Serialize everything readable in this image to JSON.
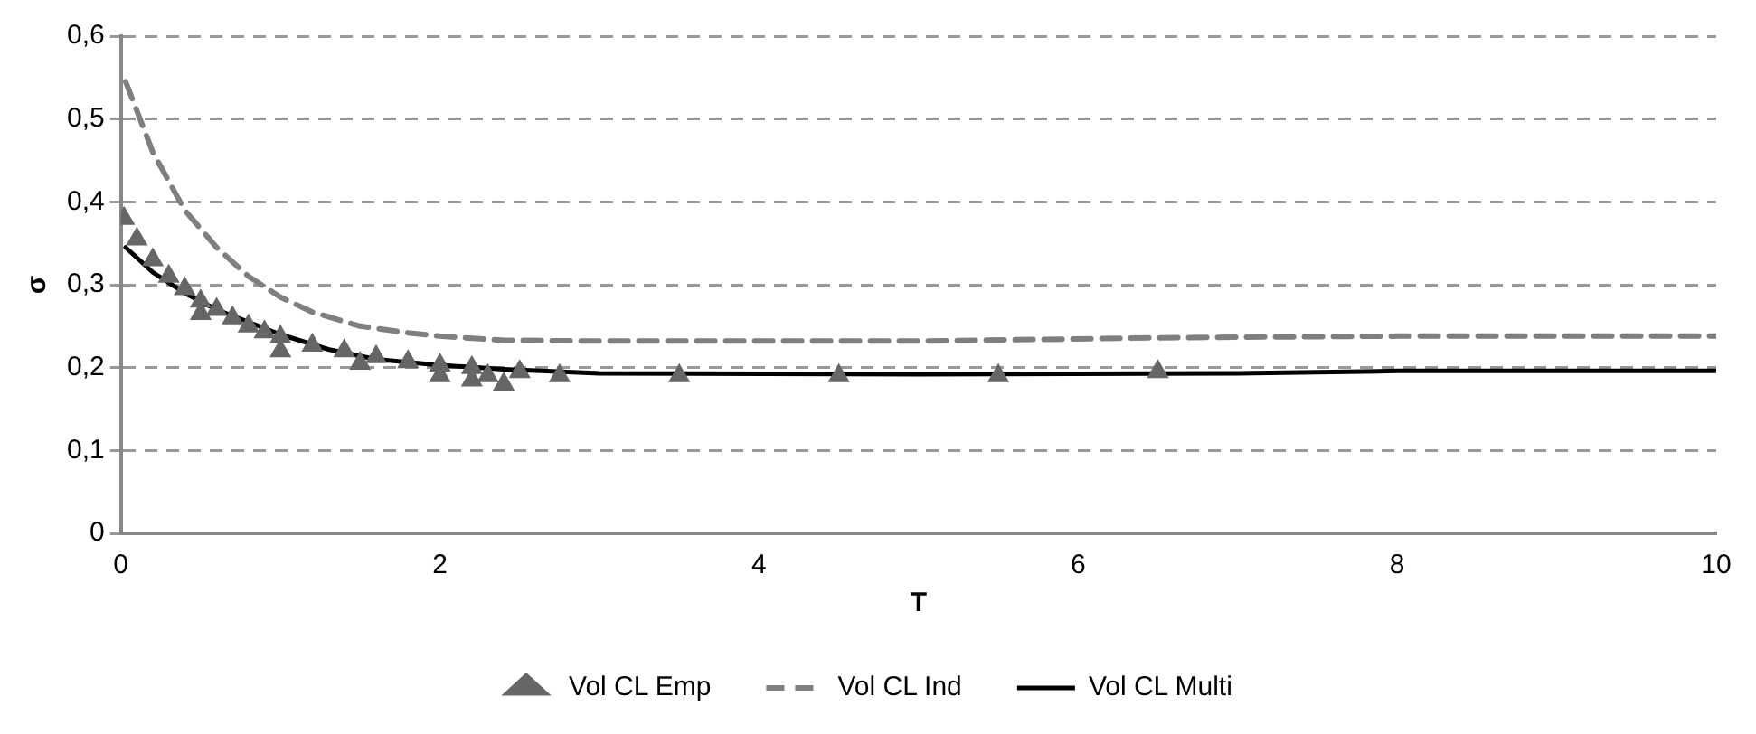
{
  "chart_data": {
    "type": "line",
    "xlabel": "T",
    "ylabel": "σ",
    "xlim": [
      0,
      10
    ],
    "xticks": [
      0,
      2,
      4,
      6,
      8,
      10
    ],
    "ylim": [
      0,
      0.6
    ],
    "yticks": [
      {
        "value": 0,
        "label": "0"
      },
      {
        "value": 0.1,
        "label": "0,1"
      },
      {
        "value": 0.2,
        "label": "0,2"
      },
      {
        "value": 0.3,
        "label": "0,3"
      },
      {
        "value": 0.4,
        "label": "0,4"
      },
      {
        "value": 0.5,
        "label": "0,5"
      },
      {
        "value": 0.6,
        "label": "0,6"
      }
    ],
    "grid": "y",
    "legend": "bottom",
    "series": [
      {
        "name": "Vol CL Emp",
        "type": "scatter",
        "marker": "triangle",
        "color": "#666666",
        "x": [
          0.02,
          0.1,
          0.2,
          0.3,
          0.4,
          0.5,
          0.6,
          0.7,
          0.8,
          0.9,
          1.0,
          1.2,
          1.4,
          1.6,
          1.8,
          2.0,
          2.2,
          2.3,
          2.4,
          2.5,
          2.75,
          3.5,
          4.5,
          5.5,
          6.5,
          0.5,
          1.0,
          1.5,
          2.0,
          2.2
        ],
        "values": [
          0.38,
          0.355,
          0.33,
          0.31,
          0.295,
          0.28,
          0.27,
          0.26,
          0.25,
          0.243,
          0.237,
          0.227,
          0.22,
          0.213,
          0.207,
          0.203,
          0.2,
          0.19,
          0.18,
          0.195,
          0.19,
          0.19,
          0.19,
          0.19,
          0.195,
          0.265,
          0.22,
          0.205,
          0.19,
          0.185
        ]
      },
      {
        "name": "Vol CL Ind",
        "type": "line",
        "line_style": "dashed",
        "color": "#7f7f7f",
        "x": [
          0.03,
          0.2,
          0.4,
          0.6,
          0.8,
          1.0,
          1.2,
          1.5,
          1.8,
          2.0,
          2.4,
          3,
          5,
          6.5,
          8,
          10
        ],
        "values": [
          0.545,
          0.46,
          0.39,
          0.345,
          0.31,
          0.285,
          0.267,
          0.25,
          0.242,
          0.238,
          0.233,
          0.232,
          0.232,
          0.236,
          0.238,
          0.238
        ]
      },
      {
        "name": "Vol CL Multi",
        "type": "line",
        "line_style": "solid",
        "color": "#000000",
        "x": [
          0.03,
          0.2,
          0.4,
          0.6,
          0.8,
          1.0,
          1.3,
          1.6,
          2.0,
          2.4,
          3,
          5,
          7,
          8,
          10
        ],
        "values": [
          0.345,
          0.315,
          0.29,
          0.27,
          0.255,
          0.24,
          0.222,
          0.21,
          0.203,
          0.198,
          0.193,
          0.192,
          0.193,
          0.196,
          0.196
        ]
      }
    ]
  }
}
